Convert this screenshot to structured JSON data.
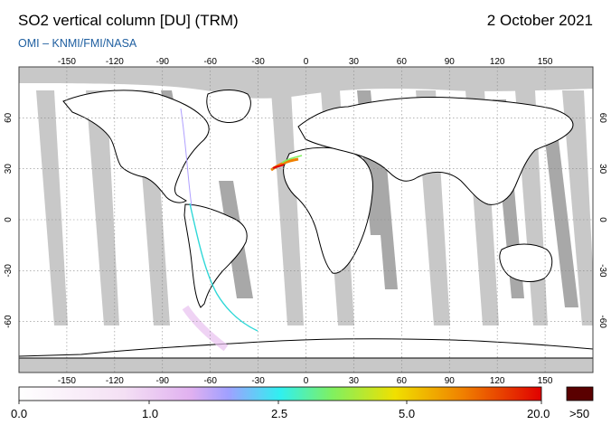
{
  "header": {
    "title": "SO2 vertical column [DU] (TRM)",
    "date": "2 October 2021",
    "credit": "OMI  –  KNMI/FMI/NASA"
  },
  "map": {
    "lon_ticks": [
      "-150",
      "-120",
      "-90",
      "-60",
      "-30",
      "0",
      "30",
      "60",
      "90",
      "120",
      "150"
    ],
    "lat_ticks": [
      "60",
      "30",
      "0",
      "-30",
      "-60"
    ],
    "colors": {
      "land_outline": "#000000",
      "no_data": "#c8c8c8",
      "swath_overlap": "#a8a8a8",
      "ocean": "#ffffff"
    }
  },
  "colorbar": {
    "labels": [
      "0.0",
      "1.0",
      "2.5",
      "5.0",
      "20.0"
    ],
    "overflow_label": ">50",
    "colors": [
      "#ffffff",
      "#f2d9f2",
      "#e0b0f0",
      "#9aa0ff",
      "#30f0f0",
      "#80f060",
      "#f0e000",
      "#f08000",
      "#e00000"
    ],
    "overflow_color": "#5a0000"
  }
}
